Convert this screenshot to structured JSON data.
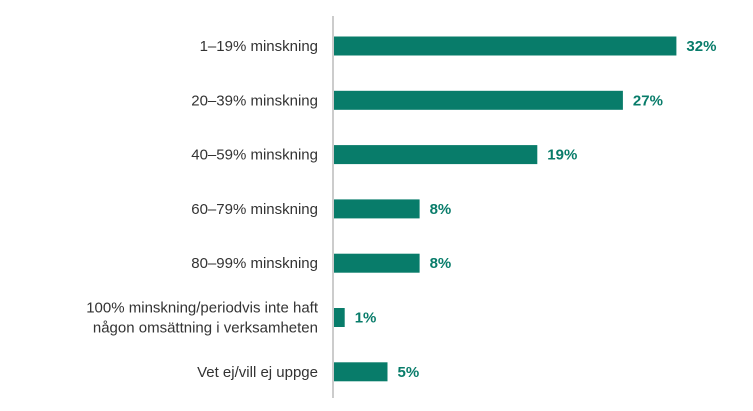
{
  "colors": {
    "bar": "#087c6a",
    "label": "#333333",
    "axis": "#9a9a9a"
  },
  "chart_data": {
    "type": "bar",
    "orientation": "horizontal",
    "title": "",
    "xlabel": "",
    "ylabel": "",
    "grid": false,
    "xlim": [
      0,
      35
    ],
    "categories": [
      [
        "1–19% minskning"
      ],
      [
        "20–39% minskning"
      ],
      [
        "40–59% minskning"
      ],
      [
        "60–79% minskning"
      ],
      [
        "80–99% minskning"
      ],
      [
        "100% minskning/periodvis inte haft",
        "någon omsättning i verksamheten"
      ],
      [
        "Vet ej/vill ej uppge"
      ]
    ],
    "values": [
      32,
      27,
      19,
      8,
      8,
      1,
      5
    ],
    "value_labels": [
      "32%",
      "27%",
      "19%",
      "8%",
      "8%",
      "1%",
      "5%"
    ]
  }
}
